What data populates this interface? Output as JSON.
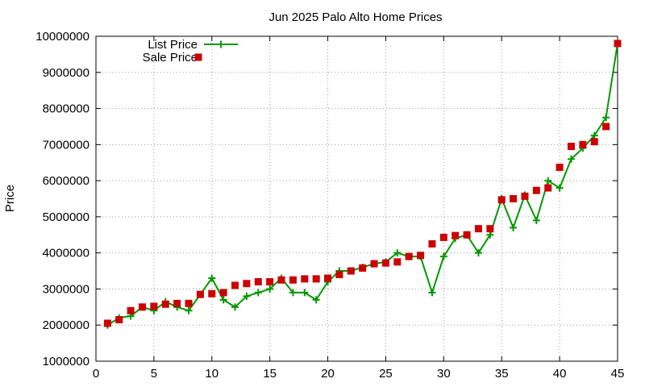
{
  "chart_data": {
    "type": "line",
    "title": "Jun 2025 Palo Alto Home Prices",
    "xlabel": "",
    "ylabel": "Price",
    "xlim": [
      0,
      45
    ],
    "ylim": [
      1000000,
      10000000
    ],
    "xticks": [
      0,
      5,
      10,
      15,
      20,
      25,
      30,
      35,
      40,
      45
    ],
    "yticks": [
      1000000,
      2000000,
      3000000,
      4000000,
      5000000,
      6000000,
      7000000,
      8000000,
      9000000,
      10000000
    ],
    "grid": true,
    "legend_position": "top-left",
    "series": [
      {
        "name": "List Price",
        "style": "linespoints",
        "marker": "plus",
        "color": "#009900",
        "x": [
          1,
          2,
          3,
          4,
          5,
          6,
          7,
          8,
          9,
          10,
          11,
          12,
          13,
          14,
          15,
          16,
          17,
          18,
          19,
          20,
          21,
          22,
          23,
          24,
          25,
          26,
          27,
          28,
          29,
          30,
          31,
          32,
          33,
          34,
          35,
          36,
          37,
          38,
          39,
          40,
          41,
          42,
          43,
          44,
          45
        ],
        "y": [
          2000000,
          2200000,
          2250000,
          2500000,
          2400000,
          2650000,
          2500000,
          2400000,
          2850000,
          3300000,
          2700000,
          2500000,
          2800000,
          2900000,
          3000000,
          3300000,
          2900000,
          2900000,
          2700000,
          3200000,
          3500000,
          3500000,
          3600000,
          3700000,
          3750000,
          4000000,
          3900000,
          3900000,
          2900000,
          3900000,
          4400000,
          4500000,
          4000000,
          4500000,
          5500000,
          4700000,
          5600000,
          4900000,
          6000000,
          5800000,
          6600000,
          6900000,
          7250000,
          7750000,
          9800000
        ]
      },
      {
        "name": "Sale Price",
        "style": "points",
        "marker": "square",
        "color": "#cc0000",
        "x": [
          1,
          2,
          3,
          4,
          5,
          6,
          7,
          8,
          9,
          10,
          11,
          12,
          13,
          14,
          15,
          16,
          17,
          18,
          19,
          20,
          21,
          22,
          23,
          24,
          25,
          26,
          27,
          28,
          29,
          30,
          31,
          32,
          33,
          34,
          35,
          36,
          37,
          38,
          39,
          40,
          41,
          42,
          43,
          44,
          45
        ],
        "y": [
          2050000,
          2150000,
          2400000,
          2500000,
          2520000,
          2580000,
          2600000,
          2600000,
          2850000,
          2870000,
          2900000,
          3100000,
          3150000,
          3200000,
          3200000,
          3250000,
          3250000,
          3280000,
          3280000,
          3300000,
          3400000,
          3500000,
          3580000,
          3700000,
          3720000,
          3750000,
          3900000,
          3930000,
          4250000,
          4430000,
          4480000,
          4500000,
          4670000,
          4670000,
          5470000,
          5500000,
          5570000,
          5730000,
          5800000,
          6370000,
          6950000,
          7000000,
          7080000,
          7500000,
          9800000
        ]
      }
    ]
  }
}
